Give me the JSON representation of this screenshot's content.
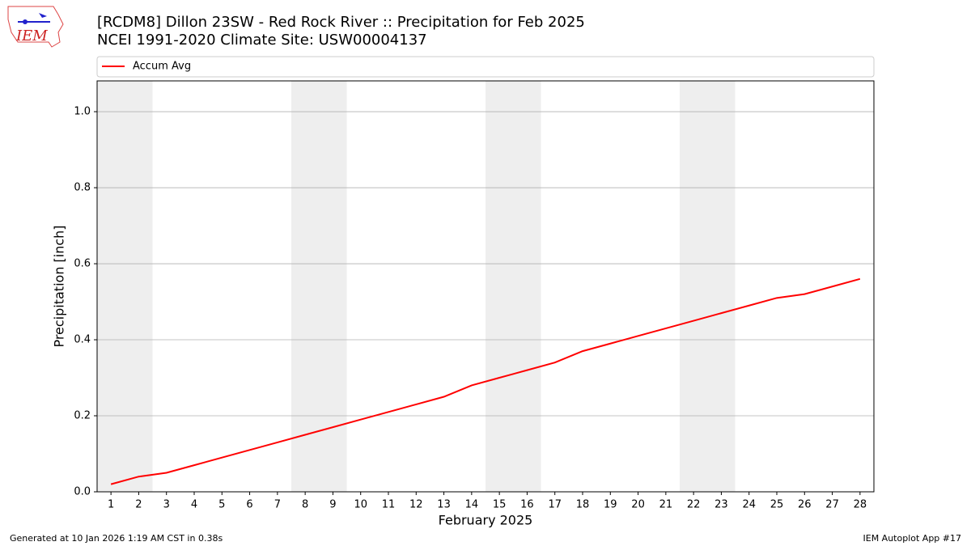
{
  "chart_data": {
    "type": "line",
    "title": "[RCDM8] Dillon 23SW - Red Rock River :: Precipitation for Feb 2025",
    "subtitle": "NCEI 1991-2020 Climate Site: USW00004137",
    "x_label": "February 2025",
    "y_label": "Precipitation [inch]",
    "x": [
      1,
      2,
      3,
      4,
      5,
      6,
      7,
      8,
      9,
      10,
      11,
      12,
      13,
      14,
      15,
      16,
      17,
      18,
      19,
      20,
      21,
      22,
      23,
      24,
      25,
      26,
      27,
      28
    ],
    "series": [
      {
        "name": "Accum Avg",
        "color": "#ff0000",
        "values": [
          0.02,
          0.04,
          0.05,
          0.07,
          0.09,
          0.11,
          0.13,
          0.15,
          0.17,
          0.19,
          0.21,
          0.23,
          0.25,
          0.28,
          0.3,
          0.32,
          0.34,
          0.37,
          0.39,
          0.41,
          0.43,
          0.45,
          0.47,
          0.49,
          0.51,
          0.52,
          0.54,
          0.56
        ]
      }
    ],
    "xlim": [
      0.5,
      28.5
    ],
    "ylim": [
      0,
      1.081
    ],
    "xticks": [
      1,
      2,
      3,
      4,
      5,
      6,
      7,
      8,
      9,
      10,
      11,
      12,
      13,
      14,
      15,
      16,
      17,
      18,
      19,
      20,
      21,
      22,
      23,
      24,
      25,
      26,
      27,
      28
    ],
    "yticks": [
      {
        "value": 0,
        "label": "0.0"
      },
      {
        "value": 0.2,
        "label": "0.2"
      },
      {
        "value": 0.4,
        "label": "0.4"
      },
      {
        "value": 0.6,
        "label": "0.6"
      },
      {
        "value": 0.8,
        "label": "0.8"
      },
      {
        "value": 1,
        "label": "1.0"
      }
    ],
    "grid": true,
    "legend": "top",
    "shaded_days": [
      [
        1,
        2
      ],
      [
        8,
        9
      ],
      [
        15,
        16
      ],
      [
        22,
        23
      ]
    ],
    "shade_color": "#eeeeee"
  },
  "logo_text": "IEM",
  "footer": {
    "left": "Generated at 10 Jan 2026 1:19 AM CST in 0.38s",
    "right": "IEM Autoplot App #17"
  }
}
